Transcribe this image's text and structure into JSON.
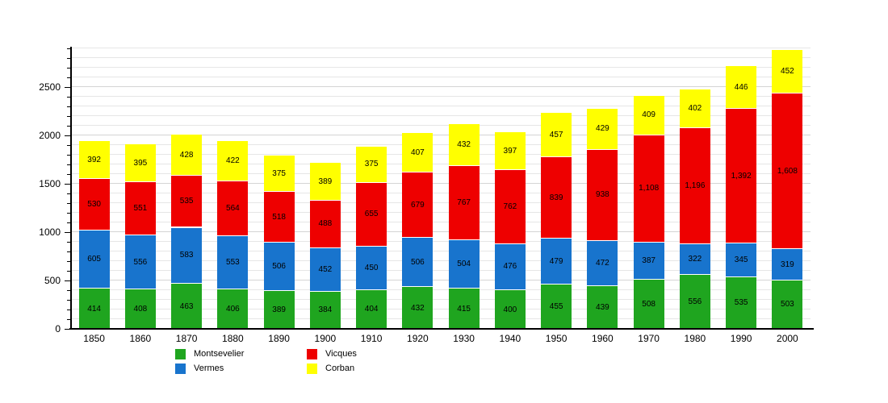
{
  "chart_data": {
    "type": "bar",
    "stacked": true,
    "title": "",
    "xlabel": "",
    "ylabel": "",
    "categories": [
      "1850",
      "1860",
      "1870",
      "1880",
      "1890",
      "1900",
      "1910",
      "1920",
      "1930",
      "1940",
      "1950",
      "1960",
      "1970",
      "1980",
      "1990",
      "2000"
    ],
    "series": [
      {
        "name": "Montsevelier",
        "color": "#1fa51f",
        "values": [
          414,
          408,
          463,
          406,
          389,
          384,
          404,
          432,
          415,
          400,
          455,
          439,
          508,
          556,
          535,
          503
        ]
      },
      {
        "name": "Vermes",
        "color": "#1874cd",
        "values": [
          605,
          556,
          583,
          553,
          506,
          452,
          450,
          506,
          504,
          476,
          479,
          472,
          387,
          322,
          345,
          319
        ]
      },
      {
        "name": "Vicques",
        "color": "#ee0000",
        "values": [
          530,
          551,
          535,
          564,
          518,
          488,
          655,
          679,
          767,
          762,
          839,
          938,
          1108,
          1196,
          1392,
          1608
        ]
      },
      {
        "name": "Corban",
        "color": "#ffff00",
        "values": [
          392,
          395,
          428,
          422,
          375,
          389,
          375,
          407,
          432,
          397,
          457,
          429,
          409,
          402,
          446,
          452
        ]
      }
    ],
    "ylim": [
      0,
      2900
    ],
    "ytick_values": [
      0,
      500,
      1000,
      1500,
      2000,
      2500
    ],
    "ytick_labels": [
      "0",
      "500",
      "1000",
      "1500",
      "2000",
      "2500"
    ],
    "minor_grid_step": 100,
    "grid": "horizontal",
    "bar_value_labels": "inside-each-segment, thousands comma-separated",
    "legend_position": "bottom",
    "legend_columns": [
      [
        "Montsevelier",
        "Vermes"
      ],
      [
        "Vicques",
        "Corban"
      ]
    ]
  }
}
